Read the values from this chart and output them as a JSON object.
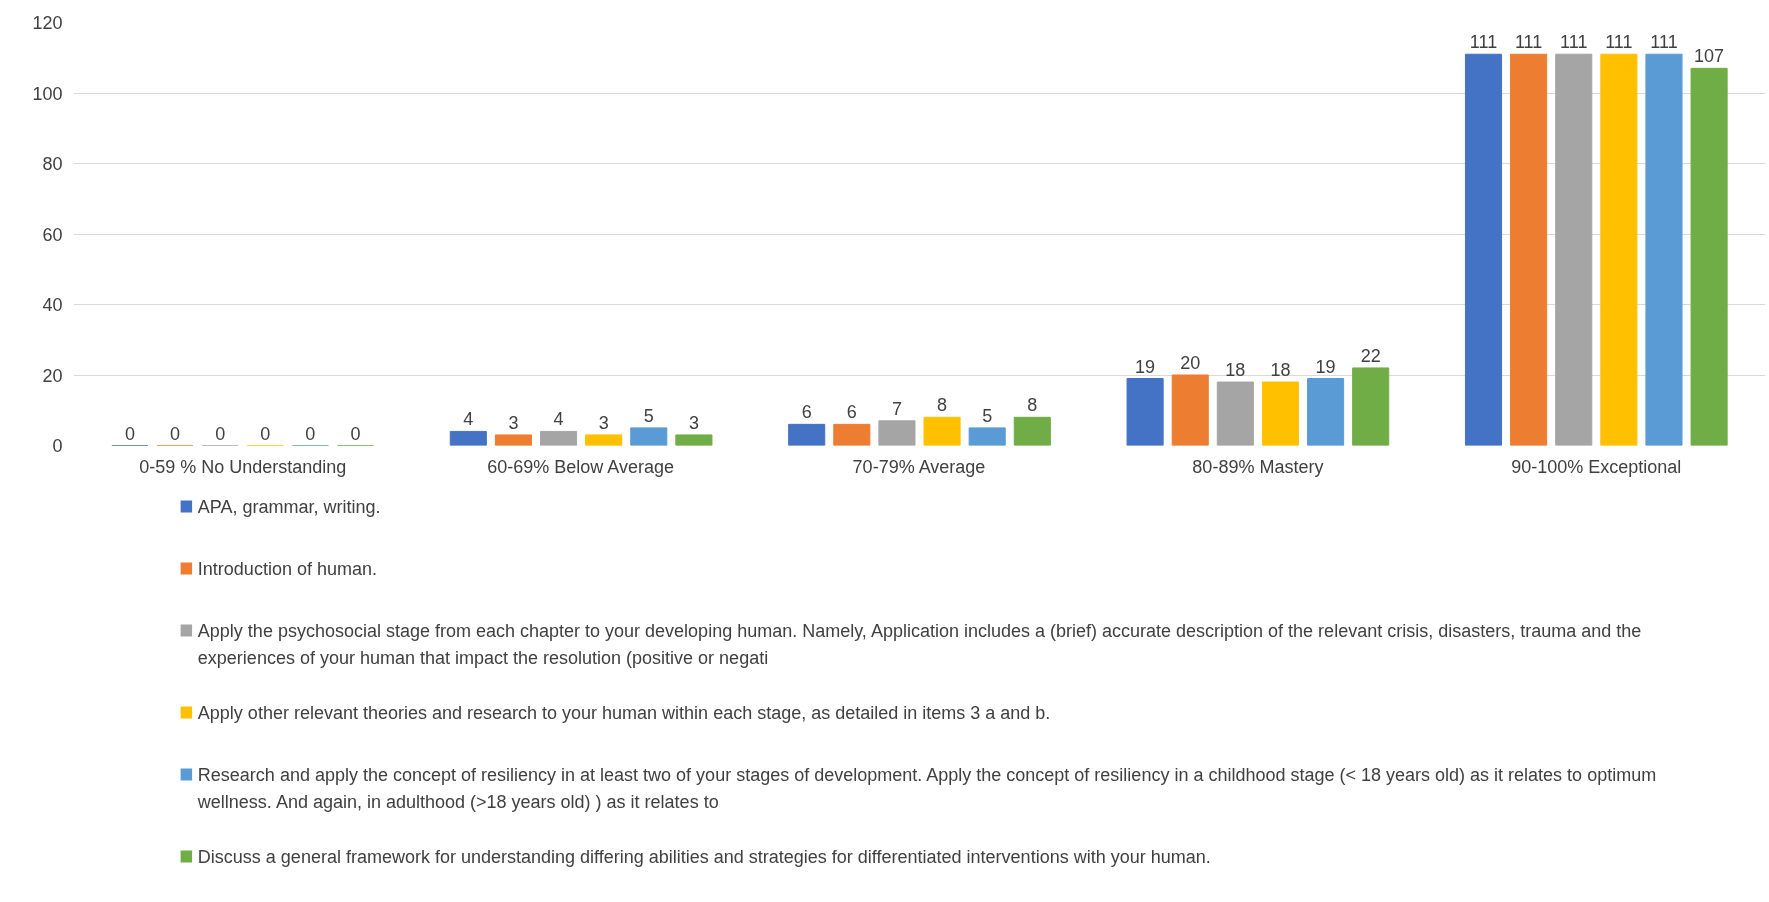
{
  "chart_data": {
    "type": "bar",
    "categories": [
      "0-59 % No Understanding",
      "60-69% Below Average",
      "70-79% Average",
      "80-89% Mastery",
      "90-100% Exceptional"
    ],
    "series": [
      {
        "name": "APA, grammar, writing.",
        "color": "#4472c4",
        "values": [
          0,
          4,
          6,
          19,
          111
        ]
      },
      {
        "name": "Introduction of human.",
        "color": "#ed7d31",
        "values": [
          0,
          3,
          6,
          20,
          111
        ]
      },
      {
        "name": "Apply the psychosocial stage from each chapter to your developing human. Namely, Application includes a (brief) accurate description of the relevant crisis, disasters, trauma and the experiences of your human that impact the resolution (positive or negati",
        "color": "#a5a5a5",
        "values": [
          0,
          4,
          7,
          18,
          111
        ]
      },
      {
        "name": "Apply other relevant theories and research to your human within each stage, as detailed in items 3 a and b.",
        "color": "#ffc000",
        "values": [
          0,
          3,
          8,
          18,
          111
        ]
      },
      {
        "name": "Research and apply the concept of resiliency in at least two of your stages of development. Apply the concept of resiliency in a childhood stage (< 18 years old) as it relates to optimum wellness. And again, in adulthood (>18 years old) ) as it relates to",
        "color": "#5b9bd5",
        "values": [
          0,
          5,
          5,
          19,
          111
        ]
      },
      {
        "name": "Discuss a general framework for understanding differing abilities and strategies for differentiated interventions with your human.",
        "color": "#70ad47",
        "values": [
          0,
          3,
          8,
          22,
          107
        ]
      }
    ],
    "ylim": [
      0,
      120
    ],
    "yticks": [
      0,
      20,
      40,
      60,
      80,
      100,
      120
    ],
    "grid": "y",
    "data_labels": true,
    "legend": "bottom"
  }
}
